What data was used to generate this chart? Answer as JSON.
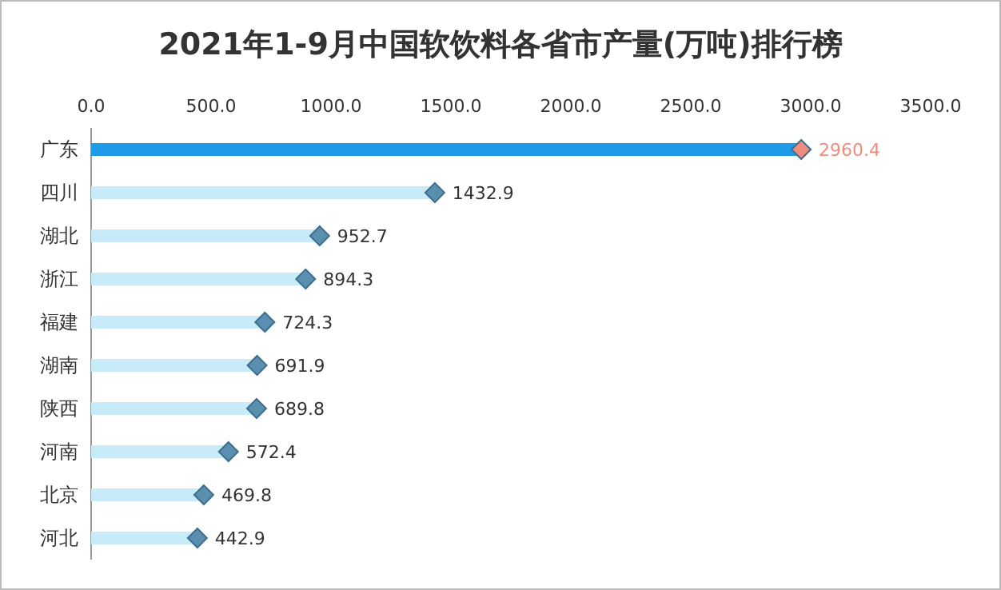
{
  "chart_data": {
    "type": "lollipop",
    "orientation": "horizontal",
    "title": "2021年1-9月中国软饮料各省市产量(万吨)排行榜",
    "categories": [
      "广东",
      "四川",
      "湖北",
      "浙江",
      "福建",
      "湖南",
      "陕西",
      "河南",
      "北京",
      "河北"
    ],
    "values": [
      2960.4,
      1432.9,
      952.7,
      894.3,
      724.3,
      691.9,
      689.8,
      572.4,
      469.8,
      442.9
    ],
    "colors": [
      "#f08c7c",
      "#5b8fb0",
      "#5b8fb0",
      "#5b8fb0",
      "#5b8fb0",
      "#5b8fb0",
      "#5b8fb0",
      "#5b8fb0",
      "#5b8fb0",
      "#5b8fb0"
    ],
    "xlim": [
      0,
      3500
    ],
    "xticks": [
      {
        "value": 0,
        "label": "0.0"
      },
      {
        "value": 500,
        "label": "500.0"
      },
      {
        "value": 1000,
        "label": "1000.0"
      },
      {
        "value": 1500,
        "label": "1500.0"
      },
      {
        "value": 2000,
        "label": "2000.0"
      },
      {
        "value": 2500,
        "label": "2500.0"
      },
      {
        "value": 3000,
        "label": "3000.0"
      },
      {
        "value": 3500,
        "label": "3500.0"
      }
    ],
    "marker": "diamond",
    "data_labels": true,
    "grid": false
  }
}
